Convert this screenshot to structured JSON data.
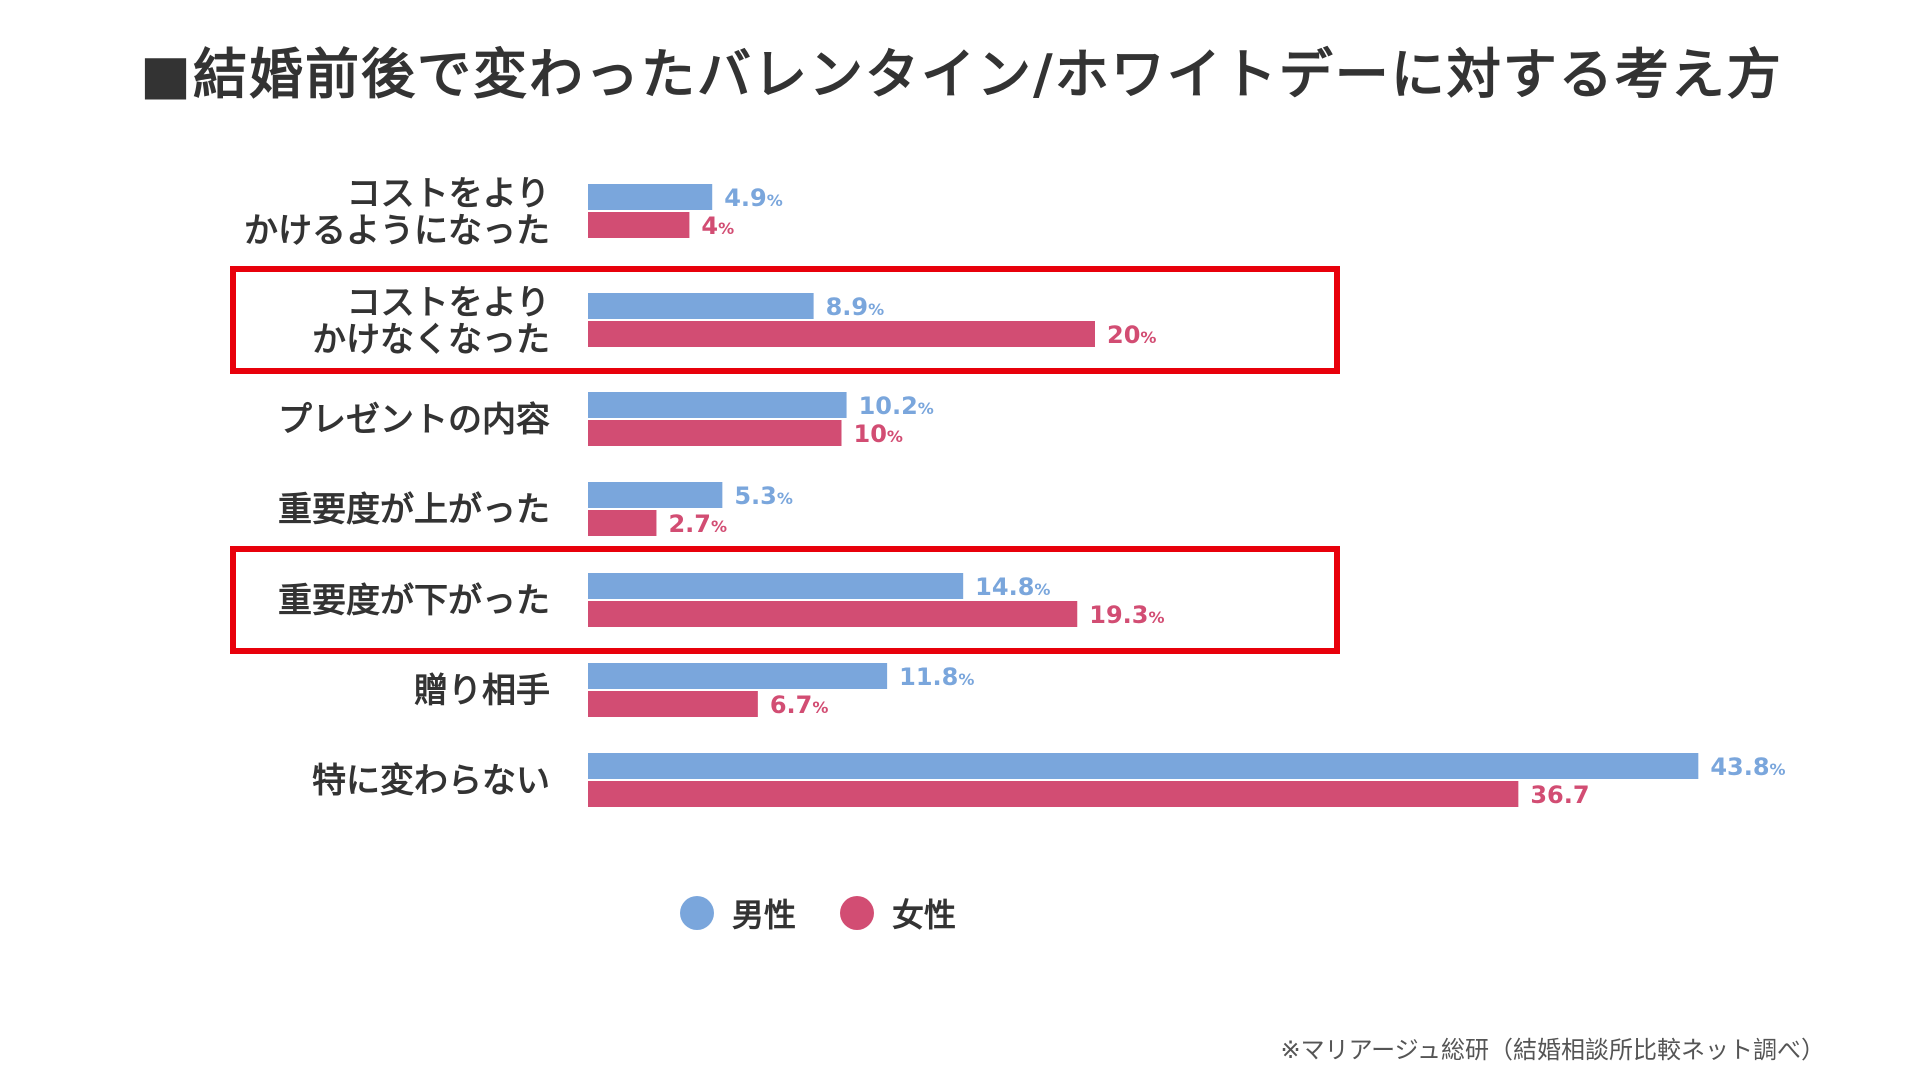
{
  "chart_data": {
    "type": "bar",
    "orientation": "horizontal",
    "title": "■結婚前後で変わったバレンタイン/ホワイトデーに対する考え方",
    "categories": [
      [
        "コストをより",
        "かけるようになった"
      ],
      [
        "コストをより",
        "かけなくなった"
      ],
      [
        "プレゼントの内容"
      ],
      [
        "重要度が上がった"
      ],
      [
        "重要度が下がった"
      ],
      [
        "贈り相手"
      ],
      [
        "特に変わらない"
      ]
    ],
    "series": [
      {
        "name": "男性",
        "color": "#7aa6dc",
        "values": [
          4.9,
          8.9,
          10.2,
          5.3,
          14.8,
          11.8,
          43.8
        ],
        "labels": [
          "4.9",
          "8.9",
          "10.2",
          "5.3",
          "14.8",
          "11.8",
          "43.8"
        ],
        "units": [
          "%",
          "%",
          "%",
          "%",
          "%",
          "%",
          "%"
        ]
      },
      {
        "name": "女性",
        "color": "#d24d73",
        "values": [
          4,
          20,
          10,
          2.7,
          19.3,
          6.7,
          36.7
        ],
        "labels": [
          "4",
          "20",
          "10",
          "2.7",
          "19.3",
          "6.7",
          "36.7"
        ],
        "units": [
          "%",
          "%",
          "%",
          "%",
          "%",
          "%",
          ""
        ]
      }
    ],
    "highlighted_categories": [
      1,
      4
    ],
    "highlight_color": "#e8000b",
    "xlim": [
      0,
      44
    ],
    "grid": false,
    "legend_position": "bottom"
  },
  "legend": {
    "male_label": "男性",
    "female_label": "女性"
  },
  "source_note": "※マリアージュ総研（結婚相談所比較ネット調べ）"
}
